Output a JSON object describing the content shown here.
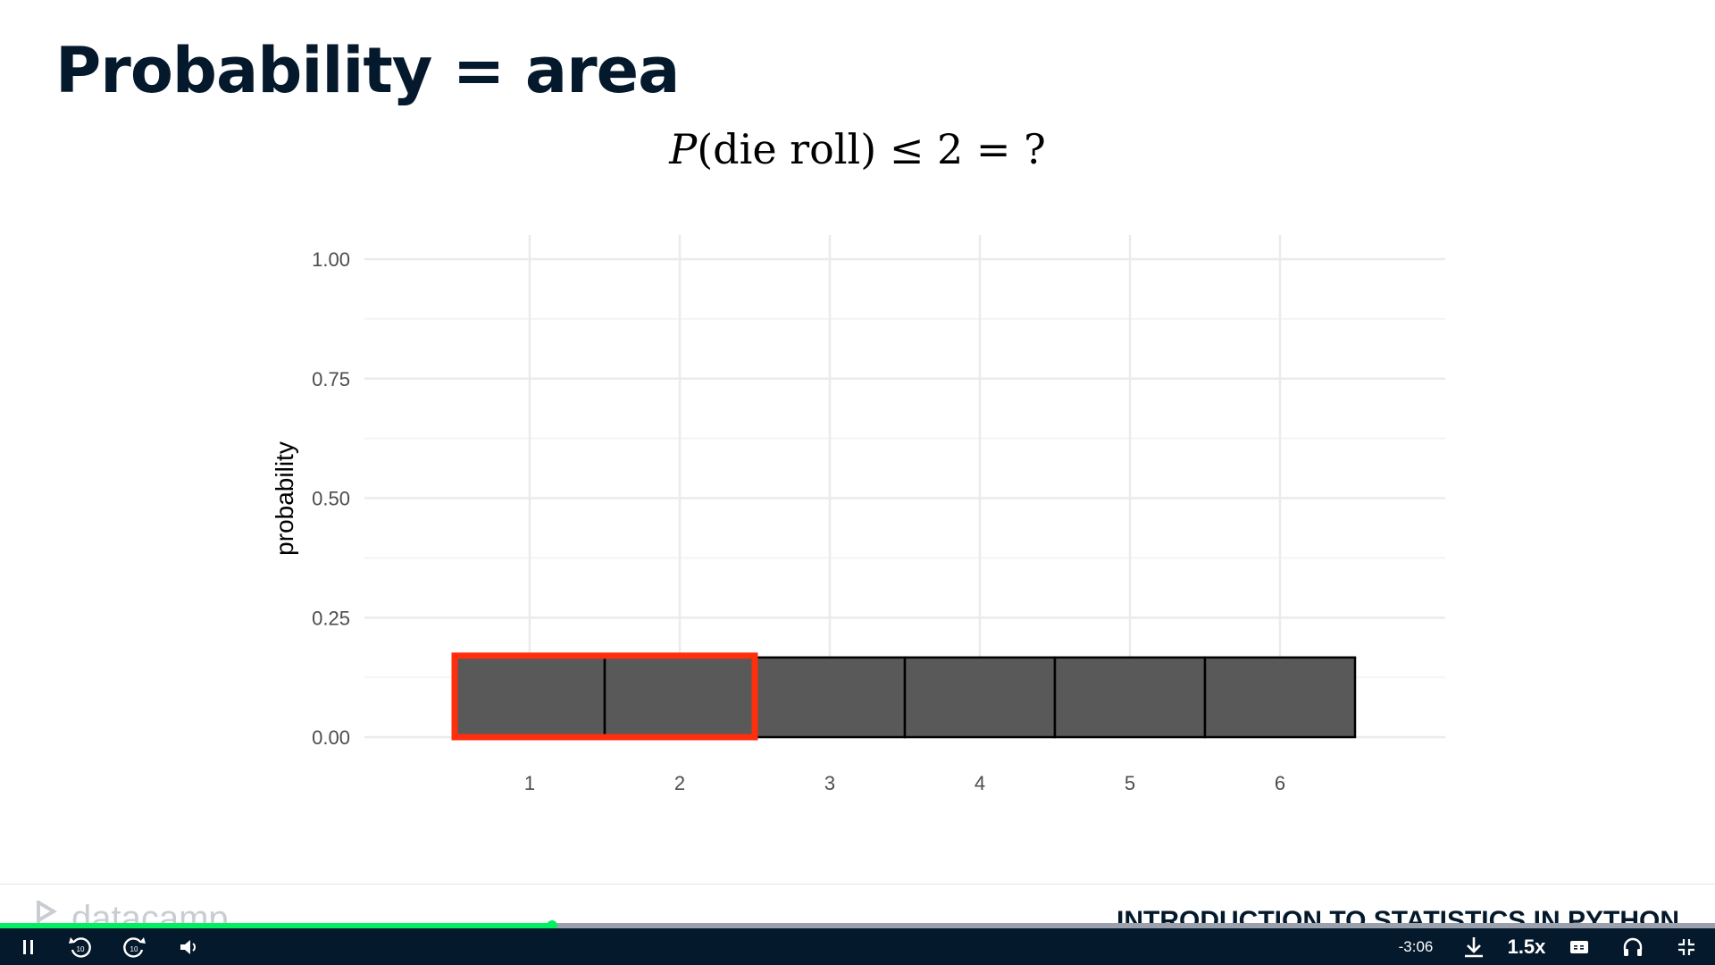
{
  "slide": {
    "title": "Probability = area",
    "formula": {
      "p": "P",
      "open": "(",
      "arg": "die roll",
      "close": ")",
      "rest": " ≤ 2 = ?"
    }
  },
  "chart_data": {
    "type": "bar",
    "categories": [
      "1",
      "2",
      "3",
      "4",
      "5",
      "6"
    ],
    "values": [
      0.1667,
      0.1667,
      0.1667,
      0.1667,
      0.1667,
      0.1667
    ],
    "highlighted": [
      "1",
      "2"
    ],
    "ylabel": "probability",
    "xlabel": "",
    "ylim": [
      0,
      1
    ],
    "yticks": [
      "0.00",
      "0.25",
      "0.50",
      "0.75",
      "1.00"
    ],
    "grid": true,
    "bar_color": "#595959",
    "highlight_color": "#ff2e0d"
  },
  "footer": {
    "logo": "datacamp",
    "course": "INTRODUCTION TO STATISTICS IN PYTHON"
  },
  "player": {
    "progress": 0.322,
    "time_remaining": "-3:06",
    "speed": "1.5x",
    "skip_back": "10",
    "skip_forward": "10",
    "colors": {
      "bar": "#05192d",
      "progress": "#03ef62"
    }
  }
}
